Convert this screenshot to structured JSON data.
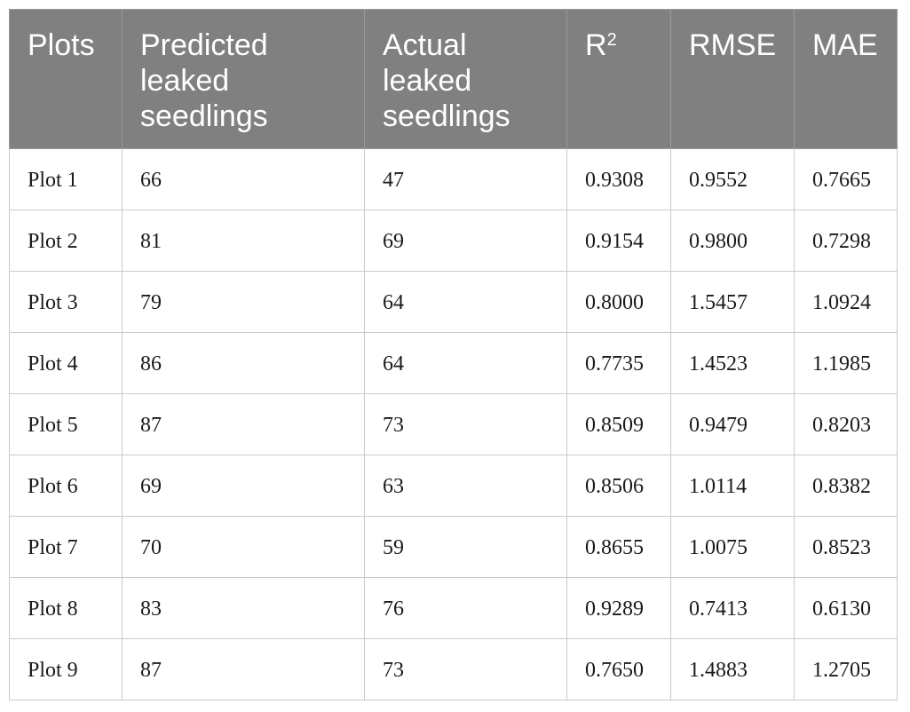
{
  "table": {
    "headers": {
      "plots": "Plots",
      "predicted": "Predicted leaked seedlings",
      "actual": "Actual leaked seedlings",
      "r2_base": "R",
      "r2_sup": "2",
      "rmse": "RMSE",
      "mae": "MAE"
    },
    "rows": [
      {
        "plot": "Plot 1",
        "predicted": "66",
        "actual": "47",
        "r2": "0.9308",
        "rmse": "0.9552",
        "mae": "0.7665"
      },
      {
        "plot": "Plot 2",
        "predicted": "81",
        "actual": "69",
        "r2": "0.9154",
        "rmse": "0.9800",
        "mae": "0.7298"
      },
      {
        "plot": "Plot 3",
        "predicted": "79",
        "actual": "64",
        "r2": "0.8000",
        "rmse": "1.5457",
        "mae": "1.0924"
      },
      {
        "plot": "Plot 4",
        "predicted": "86",
        "actual": "64",
        "r2": "0.7735",
        "rmse": "1.4523",
        "mae": "1.1985"
      },
      {
        "plot": "Plot 5",
        "predicted": "87",
        "actual": "73",
        "r2": "0.8509",
        "rmse": "0.9479",
        "mae": "0.8203"
      },
      {
        "plot": "Plot 6",
        "predicted": "69",
        "actual": "63",
        "r2": "0.8506",
        "rmse": "1.0114",
        "mae": "0.8382"
      },
      {
        "plot": "Plot 7",
        "predicted": "70",
        "actual": "59",
        "r2": "0.8655",
        "rmse": "1.0075",
        "mae": "0.8523"
      },
      {
        "plot": "Plot 8",
        "predicted": "83",
        "actual": "76",
        "r2": "0.9289",
        "rmse": "0.7413",
        "mae": "0.6130"
      },
      {
        "plot": "Plot 9",
        "predicted": "87",
        "actual": "73",
        "r2": "0.7650",
        "rmse": "1.4883",
        "mae": "1.2705"
      }
    ]
  },
  "colors": {
    "header_bg": "#7f807f",
    "header_text": "#ffffff",
    "grid": "#c9c9c9",
    "body_text": "#1a1a1a"
  }
}
